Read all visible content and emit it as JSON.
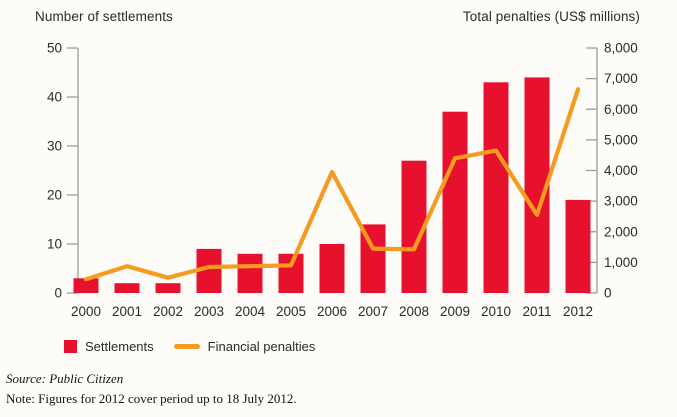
{
  "colors": {
    "bar_red": "#E8112D",
    "line_orange": "#F49B20",
    "axis_gray": "#9c9a9a",
    "text_dark": "#2d2a2b",
    "background": "#fdfcf9"
  },
  "footer": {
    "source": "Source: Public Citizen",
    "note": "Note: Figures for 2012 cover period up to 18 July 2012."
  },
  "chart_data": {
    "type": "bar+line combo",
    "categories": [
      "2000",
      "2001",
      "2002",
      "2003",
      "2004",
      "2005",
      "2006",
      "2007",
      "2008",
      "2009",
      "2010",
      "2011",
      "2012"
    ],
    "series": [
      {
        "name": "Settlements",
        "type": "bar",
        "axis": "left",
        "color": "#E8112D",
        "values": [
          3,
          2,
          2,
          9,
          8,
          8,
          10,
          14,
          27,
          37,
          43,
          44,
          19
        ]
      },
      {
        "name": "Financial penalties",
        "type": "line",
        "axis": "right",
        "color": "#F49B20",
        "values": [
          450,
          875,
          500,
          850,
          875,
          900,
          3950,
          1450,
          1425,
          4400,
          4650,
          2550,
          6650
        ]
      }
    ],
    "left_axis": {
      "title": "Number of settlements",
      "min": 0,
      "max": 50,
      "step": 10
    },
    "right_axis": {
      "title": "Total penalties (US$ millions)",
      "min": 0,
      "max": 8000,
      "step": 1000
    },
    "grid": false,
    "legend_position": "bottom-left"
  }
}
